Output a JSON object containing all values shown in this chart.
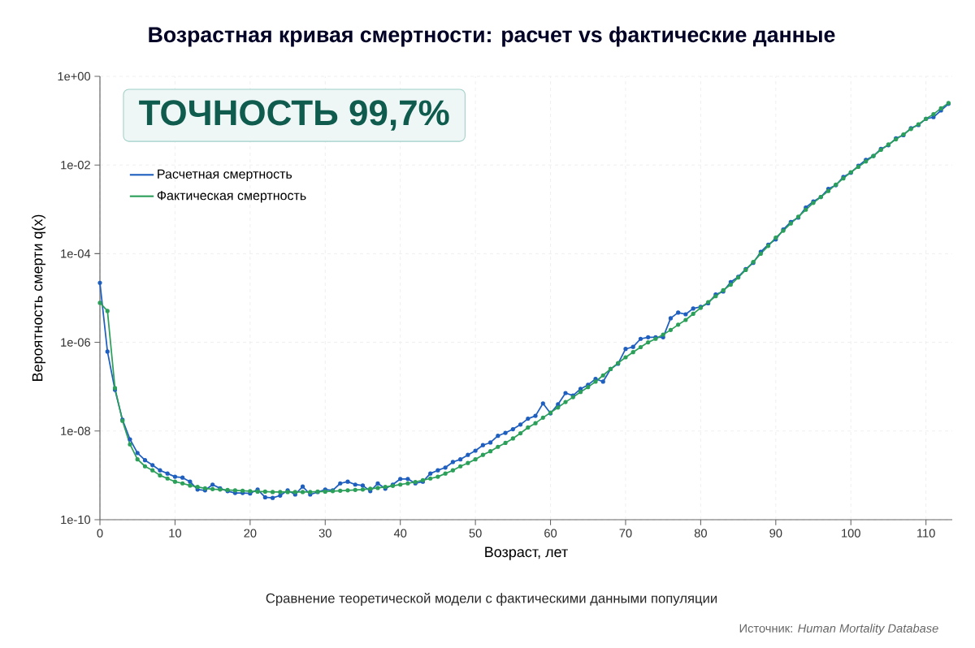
{
  "chart_data": {
    "type": "line",
    "title": "Возрастная кривая смертности: расчет vs фактические данные",
    "xlabel": "Возраст, лет",
    "ylabel": "Вероятность смерти q(x)",
    "annotations": [
      "ТОЧНОСТЬ 99,7%",
      "Сравнение теоретической модели с фактическими данными популяции",
      "Источник: *Human Mortality Database*"
    ],
    "x": [
      0,
      1,
      2,
      3,
      4,
      5,
      6,
      7,
      8,
      9,
      10,
      11,
      12,
      13,
      14,
      15,
      16,
      17,
      18,
      19,
      20,
      21,
      22,
      23,
      24,
      25,
      26,
      27,
      28,
      29,
      30,
      31,
      32,
      33,
      34,
      35,
      36,
      37,
      38,
      39,
      40,
      41,
      42,
      43,
      44,
      45,
      46,
      47,
      48,
      49,
      50,
      51,
      52,
      53,
      54,
      55,
      56,
      57,
      58,
      59,
      60,
      61,
      62,
      63,
      64,
      65,
      66,
      67,
      68,
      69,
      70,
      71,
      72,
      73,
      74,
      75,
      76,
      77,
      78,
      79,
      80,
      81,
      82,
      83,
      84,
      85,
      86,
      87,
      88,
      89,
      90,
      91,
      92,
      93,
      94,
      95,
      96,
      97,
      98,
      99,
      100,
      101,
      102,
      103,
      104,
      105,
      106,
      107,
      108,
      109,
      110,
      111,
      112,
      113
    ],
    "series": [
      {
        "name": "Расчетная смертность",
        "color": "#1f5fbf",
        "values": [
          2.2e-05,
          6.2e-07,
          8.5e-08,
          1.8e-08,
          6.5e-09,
          3.2e-09,
          2.2e-09,
          1.7e-09,
          1.3e-09,
          1.1e-09,
          9.3e-10,
          8.9e-10,
          7.2e-10,
          4.8e-10,
          4.6e-10,
          6.2e-10,
          5.1e-10,
          4.4e-10,
          4e-10,
          4e-10,
          3.9e-10,
          4.8e-10,
          3.2e-10,
          3.1e-10,
          3.5e-10,
          4.6e-10,
          3.7e-10,
          5.6e-10,
          3.7e-10,
          4.2e-10,
          4.8e-10,
          4.6e-10,
          6.6e-10,
          7.2e-10,
          6.2e-10,
          5.9e-10,
          4.4e-10,
          6.6e-10,
          5e-10,
          6.2e-10,
          8.3e-10,
          8.3e-10,
          6.6e-10,
          7.2e-10,
          1.1e-09,
          1.3e-09,
          1.5e-09,
          2e-09,
          2.3e-09,
          2.9e-09,
          3.6e-09,
          4.8e-09,
          5.5e-09,
          7.8e-09,
          9.1e-09,
          1.1e-08,
          1.4e-08,
          1.9e-08,
          2.2e-08,
          4.2e-08,
          2.5e-08,
          4e-08,
          7.2e-08,
          6.3e-08,
          8.9e-08,
          1.1e-07,
          1.5e-07,
          1.3e-07,
          2.5e-07,
          3.3e-07,
          7.1e-07,
          7.9e-07,
          1.2e-06,
          1.3e-06,
          1.3e-06,
          1.3e-06,
          3.5e-06,
          4.7e-06,
          4.3e-06,
          5.8e-06,
          6.3e-06,
          7.6e-06,
          1.2e-05,
          1.4e-05,
          2.3e-05,
          3e-05,
          4.5e-05,
          6.2e-05,
          0.00011,
          0.00016,
          0.00021,
          0.00035,
          0.00052,
          0.00065,
          0.0011,
          0.0015,
          0.0019,
          0.0029,
          0.0035,
          0.0054,
          0.0067,
          0.0096,
          0.013,
          0.016,
          0.023,
          0.028,
          0.04,
          0.047,
          0.068,
          0.08,
          0.11,
          0.12,
          0.17,
          0.24
        ]
      },
      {
        "name": "Фактическая смертность",
        "color": "#2ca05a",
        "values": [
          7.8e-06,
          5.1e-06,
          9.3e-08,
          1.7e-08,
          5e-09,
          2.3e-09,
          1.6e-09,
          1.3e-09,
          1e-09,
          8.5e-10,
          7.2e-10,
          6.6e-10,
          5.9e-10,
          5.5e-10,
          5.1e-10,
          4.9e-10,
          4.8e-10,
          4.7e-10,
          4.6e-10,
          4.5e-10,
          4.4e-10,
          4.3e-10,
          4.3e-10,
          4.2e-10,
          4.2e-10,
          4.2e-10,
          4.2e-10,
          4.2e-10,
          4.2e-10,
          4.3e-10,
          4.3e-10,
          4.4e-10,
          4.5e-10,
          4.6e-10,
          4.7e-10,
          4.8e-10,
          5e-10,
          5.2e-10,
          5.5e-10,
          5.8e-10,
          6.2e-10,
          6.6e-10,
          7.1e-10,
          7.8e-10,
          8.5e-10,
          9.3e-10,
          1.1e-09,
          1.3e-09,
          1.6e-09,
          1.9e-09,
          2.3e-09,
          2.9e-09,
          3.5e-09,
          4.4e-09,
          5.4e-09,
          6.8e-09,
          8.9e-09,
          1.2e-08,
          1.5e-08,
          2e-08,
          2.6e-08,
          3.4e-08,
          4.5e-08,
          5.8e-08,
          7.6e-08,
          9.8e-08,
          1.3e-07,
          1.8e-07,
          2.5e-07,
          3.4e-07,
          4.6e-07,
          6e-07,
          7.8e-07,
          1e-06,
          1.2e-06,
          1.5e-06,
          1.9e-06,
          2.5e-06,
          3.2e-06,
          4.4e-06,
          6e-06,
          8.1e-06,
          1.1e-05,
          1.5e-05,
          2e-05,
          2.9e-05,
          4.3e-05,
          6.5e-05,
          0.0001,
          0.00015,
          0.00023,
          0.00033,
          0.00048,
          0.00068,
          0.00098,
          0.0014,
          0.0019,
          0.0026,
          0.0036,
          0.005,
          0.0069,
          0.0091,
          0.012,
          0.016,
          0.022,
          0.029,
          0.038,
          0.049,
          0.065,
          0.083,
          0.11,
          0.14,
          0.19,
          0.25
        ]
      }
    ],
    "xlim": [
      0,
      113.5
    ],
    "ylim": [
      1e-10,
      1
    ],
    "xticks": [
      0,
      10,
      20,
      30,
      40,
      50,
      60,
      70,
      80,
      90,
      100,
      110
    ],
    "yticks": [
      {
        "value": 1e-10,
        "label": "1e-10"
      },
      {
        "value": 1e-08,
        "label": "1e-08"
      },
      {
        "value": 1e-06,
        "label": "1e-06"
      },
      {
        "value": 0.0001,
        "label": "1e-04"
      },
      {
        "value": 0.01,
        "label": "1e-02"
      },
      {
        "value": 1,
        "label": "1e+00"
      }
    ],
    "log": "y",
    "grid": true,
    "legend": "top left",
    "marker": "circle",
    "line_style": "solid"
  }
}
